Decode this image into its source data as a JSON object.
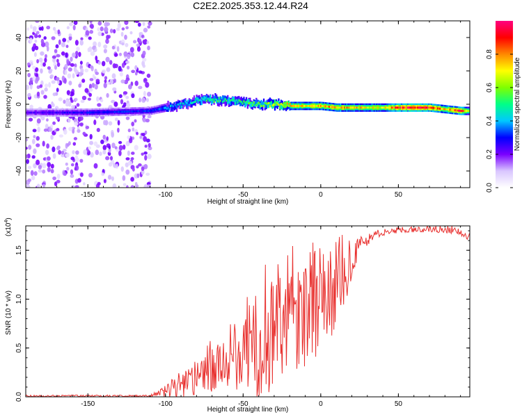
{
  "title": "C2E2.2025.353.12.44.R24",
  "chart_data": [
    {
      "type": "heatmap",
      "name": "spectrogram",
      "xlabel": "Height of straight line (km)",
      "ylabel": "Frequency (Hz)",
      "xlim": [
        -190,
        96
      ],
      "ylim": [
        -50,
        50
      ],
      "xticks": [
        -150,
        -100,
        -50,
        0,
        50
      ],
      "yticks": [
        -40,
        -20,
        0,
        20,
        40
      ],
      "colorbar": {
        "label": "Normalized spectral amplitude",
        "range": [
          0,
          1
        ],
        "ticks": [
          "0.0",
          "0.2",
          "0.4",
          "0.6",
          "0.8"
        ],
        "tick_values": [
          0,
          0.2,
          0.4,
          0.6,
          0.8
        ],
        "colors": [
          "#ffffff",
          "#d9c6ff",
          "#7a00ff",
          "#0000ff",
          "#00c8ff",
          "#00ff88",
          "#7fff00",
          "#ffff00",
          "#ff8800",
          "#ff0000",
          "#ff0080"
        ]
      },
      "ridge": [
        {
          "x": -190,
          "f": -5,
          "a": 0.22
        },
        {
          "x": -150,
          "f": -5,
          "a": 0.28
        },
        {
          "x": -110,
          "f": -4,
          "a": 0.3
        },
        {
          "x": -100,
          "f": -2,
          "a": 0.38
        },
        {
          "x": -90,
          "f": 0,
          "a": 0.42
        },
        {
          "x": -80,
          "f": 2,
          "a": 0.45
        },
        {
          "x": -70,
          "f": 3,
          "a": 0.5
        },
        {
          "x": -60,
          "f": 2,
          "a": 0.48
        },
        {
          "x": -50,
          "f": 1,
          "a": 0.52
        },
        {
          "x": -40,
          "f": 0,
          "a": 0.55
        },
        {
          "x": -30,
          "f": 0,
          "a": 0.62
        },
        {
          "x": -20,
          "f": -1,
          "a": 0.72
        },
        {
          "x": -10,
          "f": -1,
          "a": 0.7
        },
        {
          "x": 0,
          "f": -1,
          "a": 0.75
        },
        {
          "x": 10,
          "f": -2,
          "a": 0.78
        },
        {
          "x": 20,
          "f": -2,
          "a": 0.72
        },
        {
          "x": 30,
          "f": -2,
          "a": 0.7
        },
        {
          "x": 40,
          "f": -2,
          "a": 0.68
        },
        {
          "x": 50,
          "f": -2,
          "a": 0.88
        },
        {
          "x": 60,
          "f": -2,
          "a": 0.92
        },
        {
          "x": 70,
          "f": -2,
          "a": 0.9
        },
        {
          "x": 80,
          "f": -3,
          "a": 0.75
        },
        {
          "x": 90,
          "f": -4,
          "a": 0.88
        },
        {
          "x": 96,
          "f": -4,
          "a": 0.5
        }
      ]
    },
    {
      "type": "line",
      "name": "snr",
      "xlabel": "Height of straight line (km)",
      "ylabel": "SNR (10 * v/v)",
      "y_multiplier": "(x10",
      "y_multiplier_exponent": "4",
      "y_multiplier_close": ")",
      "xlim": [
        -190,
        96
      ],
      "ylim": [
        0,
        1.75
      ],
      "xticks": [
        -150,
        -100,
        -50,
        0,
        50
      ],
      "yticks": [
        "0.0",
        "0.5",
        "1.0",
        "1.5"
      ],
      "ytick_values": [
        0,
        0.5,
        1.0,
        1.5
      ],
      "series": [
        {
          "name": "SNR",
          "color": "#e8302e",
          "envelope": [
            {
              "x": -190,
              "y": 0.01,
              "noise": 0.01
            },
            {
              "x": -110,
              "y": 0.01,
              "noise": 0.01
            },
            {
              "x": -102,
              "y": 0.05,
              "noise": 0.05
            },
            {
              "x": -95,
              "y": 0.12,
              "noise": 0.14
            },
            {
              "x": -85,
              "y": 0.18,
              "noise": 0.16
            },
            {
              "x": -75,
              "y": 0.25,
              "noise": 0.2
            },
            {
              "x": -65,
              "y": 0.3,
              "noise": 0.28
            },
            {
              "x": -55,
              "y": 0.35,
              "noise": 0.3
            },
            {
              "x": -45,
              "y": 0.5,
              "noise": 0.45
            },
            {
              "x": -35,
              "y": 0.6,
              "noise": 0.55
            },
            {
              "x": -25,
              "y": 0.75,
              "noise": 0.55
            },
            {
              "x": -15,
              "y": 0.85,
              "noise": 0.55
            },
            {
              "x": -5,
              "y": 0.9,
              "noise": 0.5
            },
            {
              "x": 5,
              "y": 1.0,
              "noise": 0.45
            },
            {
              "x": 15,
              "y": 1.25,
              "noise": 0.3
            },
            {
              "x": 25,
              "y": 1.55,
              "noise": 0.1
            },
            {
              "x": 35,
              "y": 1.67,
              "noise": 0.04
            },
            {
              "x": 50,
              "y": 1.71,
              "noise": 0.03
            },
            {
              "x": 70,
              "y": 1.72,
              "noise": 0.03
            },
            {
              "x": 88,
              "y": 1.72,
              "noise": 0.05
            },
            {
              "x": 96,
              "y": 1.63,
              "noise": 0.05
            }
          ]
        }
      ]
    }
  ]
}
